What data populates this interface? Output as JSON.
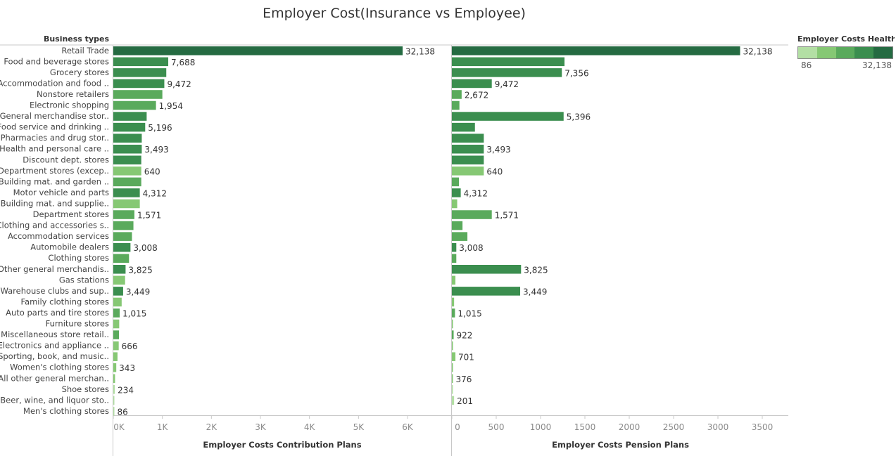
{
  "title": "Employer Cost(Insurance vs Employee)",
  "chart_data": {
    "type": "bar",
    "orientation": "horizontal",
    "title": "Employer Cost(Insurance vs Employee)",
    "row_header": "Business types",
    "categories": [
      "Retail Trade",
      "Food and beverage stores",
      "Grocery stores",
      "Accommodation and food ..",
      "Nonstore retailers",
      "Electronic shopping",
      "General merchandise stor..",
      "Food service and drinking ..",
      "Pharmacies and drug stor..",
      "Health and personal care ..",
      "Discount dept. stores",
      "Department stores (excep..",
      "Building mat. and garden ..",
      "Motor vehicle and parts",
      "Building mat. and supplie..",
      "Department stores",
      "Clothing and accessories s..",
      "Accommodation services",
      "Automobile dealers",
      "Clothing stores",
      "Other general merchandis..",
      "Gas stations",
      "Warehouse clubs and sup..",
      "Family clothing stores",
      "Auto parts and tire stores",
      "Furniture stores",
      "Miscellaneous store retail..",
      "Electronics and appliance ..",
      "Sporting, book, and  music..",
      "Women's clothing stores",
      "All other general merchan..",
      "Shoe stores",
      "Beer, wine, and liquor sto..",
      "Men's clothing stores"
    ],
    "panels": [
      {
        "xlabel": "Employer Costs Contribution Plans",
        "xlim": [
          0,
          6300
        ],
        "ticks": [
          0,
          1000,
          2000,
          3000,
          4000,
          5000,
          6000
        ],
        "tick_labels": [
          "0K",
          "1K",
          "2K",
          "3K",
          "4K",
          "5K",
          "6K"
        ],
        "values": [
          5900,
          1120,
          1080,
          1040,
          1000,
          870,
          680,
          650,
          580,
          580,
          570,
          570,
          570,
          540,
          540,
          430,
          410,
          380,
          350,
          320,
          250,
          240,
          200,
          170,
          130,
          120,
          115,
          110,
          85,
          60,
          35,
          30,
          20,
          8
        ],
        "data_labels": [
          "32,138",
          "7,688",
          "",
          "9,472",
          "",
          "1,954",
          "",
          "5,196",
          "",
          "3,493",
          "",
          "640",
          "",
          "4,312",
          "",
          "1,571",
          "",
          "",
          "3,008",
          "",
          "3,825",
          "",
          "3,449",
          "",
          "1,015",
          "",
          "",
          "666",
          "",
          "343",
          "",
          "234",
          "",
          "86"
        ]
      },
      {
        "xlabel": "Employer Costs Pension Plans",
        "xlim": [
          0,
          3750
        ],
        "ticks": [
          0,
          500,
          1000,
          1500,
          2000,
          2500,
          3000,
          3500
        ],
        "tick_labels": [
          "0",
          "500",
          "1000",
          "1500",
          "2000",
          "2500",
          "3000",
          "3500"
        ],
        "values": [
          3250,
          1270,
          1240,
          450,
          110,
          85,
          1260,
          260,
          360,
          360,
          360,
          360,
          80,
          100,
          60,
          450,
          120,
          175,
          50,
          50,
          780,
          40,
          770,
          25,
          35,
          8,
          20,
          7,
          40,
          5,
          8,
          5,
          25,
          0
        ],
        "data_labels": [
          "32,138",
          "",
          "7,356",
          "9,472",
          "2,672",
          "",
          "5,396",
          "",
          "",
          "3,493",
          "",
          "640",
          "",
          "4,312",
          "",
          "1,571",
          "",
          "",
          "3,008",
          "",
          "3,825",
          "",
          "3,449",
          "",
          "1,015",
          "",
          "922",
          "",
          "701",
          "",
          "376",
          "",
          "201",
          ""
        ]
      }
    ],
    "color_measure": "Employer Costs Health ..",
    "color_values": [
      32138,
      7688,
      7356,
      9472,
      2672,
      1954,
      5396,
      5196,
      3600,
      3493,
      3300,
      640,
      1200,
      4312,
      900,
      1571,
      1100,
      1000,
      3008,
      1400,
      3825,
      800,
      3449,
      600,
      1015,
      500,
      922,
      666,
      701,
      343,
      376,
      234,
      201,
      86
    ],
    "legend": {
      "title": "Employer Costs Health ..",
      "min_label": "86",
      "max_label": "32,138",
      "colors": [
        "#b3dfa4",
        "#86c874",
        "#5aaa5c",
        "#3b8e4f",
        "#256b42"
      ]
    }
  }
}
